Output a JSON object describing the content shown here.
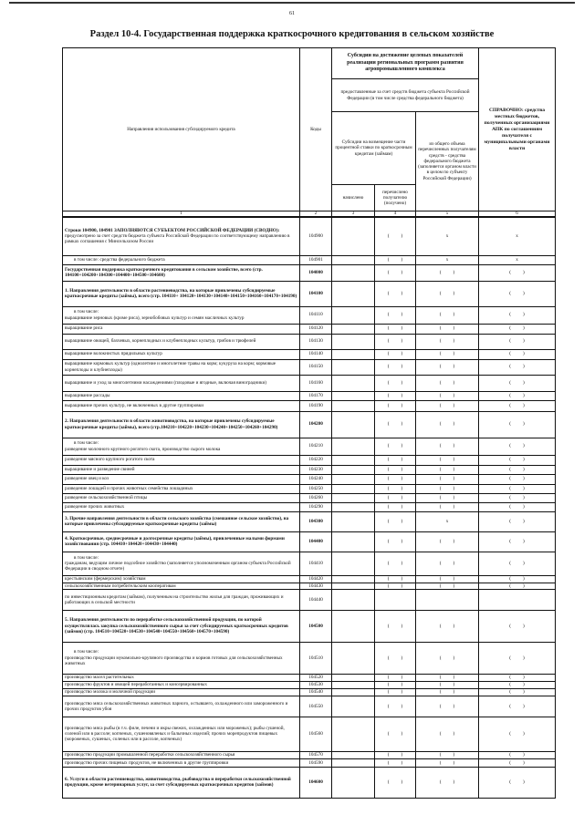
{
  "page_number": "61",
  "title": "Раздел 10-4. Государственная поддержка краткосрочного кредитования в сельском хозяйстве",
  "header": {
    "col_direction": "Направления использования субсидируемого кредита",
    "col_codes": "Коды",
    "group_subsidies": "Субсидии на достижение целевых показателей реализации региональных программ развития агропромышленного комплекса",
    "group_provided": "предоставленные за счет средств бюджета субъекта Российской Федерации (в том числе средства федерального бюджета)",
    "col_interest": "Субсидии на возмещение части процентной ставки по краткосрочным кредитам (займам)",
    "col_accrued": "начислено",
    "col_transferred": "перечислено получателю (получено)",
    "col_federal": "из общего объема перечисленных получателям средств - средства федерального бюджета (заполняется органом власти в целом по субъекту Российской Федерации)",
    "col_reference_bold": "СПРАВОЧНО:",
    "col_reference": "средства местных бюджетов, полученных организациями АПК по соглашениям получателя с муниципальными органами власти",
    "col_numbers": [
      "1",
      "2",
      "3",
      "4",
      "5",
      "6"
    ]
  },
  "rows": [
    {
      "code": "104900",
      "bold_text": "Строки 104900, 104901 ЗАПОЛНЯЮТСЯ СУБЪЕКТОМ РОССИЙСКОЙ ФЕДЕРАЦИИ (СВОДНО):",
      "text": "предусмотрено за счет средств бюджета субъекта Российской Федерации по соответствующему направлению в рамках соглашения с Минсельхозом России",
      "c3": "",
      "c4": "(          )",
      "c5": "x",
      "c6": "x"
    },
    {
      "code": "104901",
      "text": "в том числе: средства федерального бюджета",
      "indent": true,
      "c3": "",
      "c4": "(          )",
      "c5": "x",
      "c6": "x"
    },
    {
      "code": "104000",
      "bold": true,
      "text": "Государственная поддержка краткосрочного кредитования в сельском хозяйстве, всего (стр. 104100+104200+104300+104400+104500+104600)",
      "c3": "",
      "c4": "(          )",
      "c5": "(          )",
      "c6": "(          )"
    },
    {
      "code": "104100",
      "bold": true,
      "text": "1. Направления деятельности в области растениеводства, на которые привлечены субсидируемые краткосрочные кредиты (займы), всего (стр. 104110+ 104120+104130+104140+104150+104160+104170+104190)",
      "c3": "",
      "c4": "(          )",
      "c5": "(          )",
      "c6": "(          )"
    },
    {
      "code": "104110",
      "pre": "в том числе:",
      "text": "выращивание зерновых (кроме риса), зернобобовых культур и семян масличных культур",
      "c3": "",
      "c4": "(          )",
      "c5": "(          )",
      "c6": "(          )"
    },
    {
      "code": "104120",
      "text": "выращивание риса",
      "c3": "",
      "c4": "(          )",
      "c5": "(          )",
      "c6": "(          )"
    },
    {
      "code": "104130",
      "text": "выращивание овощей, бахчевых, корнеплодных и клубнеплодных культур, грибов и трюфелей",
      "c3": "",
      "c4": "(          )",
      "c5": "(          )",
      "c6": "(          )"
    },
    {
      "code": "104140",
      "text": "выращивание волокнистых прядильных культур",
      "c3": "",
      "c4": "(          )",
      "c5": "(          )",
      "c6": "(          )"
    },
    {
      "code": "104150",
      "text": "выращивание кормовых культур (однолетние и многолетние травы на корм; кукуруза на корм; кормовые корнеплоды и клубнеплоды)",
      "c3": "",
      "c4": "(          )",
      "c5": "(          )",
      "c6": "(          )"
    },
    {
      "code": "104160",
      "text": "выращивание и уход за многолетними насаждениями (плодовые и ягодные, включая виноградники)",
      "c3": "",
      "c4": "(          )",
      "c5": "(          )",
      "c6": "(          )"
    },
    {
      "code": "104170",
      "text": "выращивание рассады",
      "c3": "",
      "c4": "(          )",
      "c5": "(          )",
      "c6": "(          )"
    },
    {
      "code": "104190",
      "text": "выращивание прочих культур, не включенных в другие группировки",
      "c3": "",
      "c4": "(          )",
      "c5": "(          )",
      "c6": "(          )"
    },
    {
      "code": "104200",
      "bold": true,
      "text": "2. Направления деятельности в области животноводства, на которые привлечены субсидируемые краткосрочные кредиты (займы), всего (стр.104210+104220+104230+104240+104250+104260+104290)",
      "c3": "",
      "c4": "(          )",
      "c5": "(          )",
      "c6": "(          )"
    },
    {
      "code": "104210",
      "pre": "в том числе:",
      "text": "разведение молочного крупного рогатого скота, производство сырого молока",
      "c3": "",
      "c4": "(          )",
      "c5": "(          )",
      "c6": "(          )"
    },
    {
      "code": "104220",
      "text": "разведение мясного крупного рогатого скота",
      "c3": "",
      "c4": "(          )",
      "c5": "(          )",
      "c6": "(          )"
    },
    {
      "code": "104230",
      "text": "выращивание и разведение свиней",
      "c3": "",
      "c4": "(          )",
      "c5": "(          )",
      "c6": "(          )"
    },
    {
      "code": "104240",
      "text": "разведение овец и коз",
      "c3": "",
      "c4": "(          )",
      "c5": "(          )",
      "c6": "(          )"
    },
    {
      "code": "104250",
      "text": "разведение лошадей и прочих животных семейства лошадиных",
      "c3": "",
      "c4": "(          )",
      "c5": "(          )",
      "c6": "(          )"
    },
    {
      "code": "104260",
      "text": "разведение сельскохозяйственной птицы",
      "c3": "",
      "c4": "(          )",
      "c5": "(          )",
      "c6": "(          )"
    },
    {
      "code": "104290",
      "text": "разведение прочих животных",
      "c3": "",
      "c4": "(          )",
      "c5": "(          )",
      "c6": "(          )"
    },
    {
      "code": "104300",
      "bold": true,
      "text": "3. Прочие направления деятельности в области сельского хозяйства (смешанное сельское хозяйство), на которые привлечены субсидируемые краткосрочные кредиты (займы)",
      "c3": "",
      "c4": "(          )",
      "c5": "x",
      "c6": "(          )"
    },
    {
      "code": "104400",
      "bold": true,
      "text": "4. Краткосрочные, среднесрочные и долгосрочные кредиты (займы), привлеченные малыми формами хозяйствования (стр. 104410+104420+104430+104440)",
      "c3": "",
      "c4": "(          )",
      "c5": "(          )",
      "c6": "(          )"
    },
    {
      "code": "104410",
      "pre": "в том числе:",
      "text": "гражданам, ведущим личное подсобное хозяйство (заполняется уполномоченным органом субъекта Российской Федерации в сводном отчете)",
      "c3": "",
      "c4": "(          )",
      "c5": "(          )",
      "c6": "(          )"
    },
    {
      "code": "104420",
      "text": "крестьянским (фермерским) хозяйствам",
      "c3": "",
      "c4": "(          )",
      "c5": "(          )",
      "c6": "(          )"
    },
    {
      "code": "104430",
      "text": "сельскохозяйственным потребительским кооперативам",
      "c3": "",
      "c4": "(          )",
      "c5": "(          )",
      "c6": "(          )"
    },
    {
      "code": "104440",
      "text": "по инвестиционным кредитам (займам), полученным на строительство жилья для граждан, проживающих и работающих в сельской местности",
      "c3": "",
      "c4": "",
      "c5": "",
      "c6": ""
    },
    {
      "code": "104500",
      "bold": true,
      "text": "5. Направления деятельности по переработке сельскохозяйственной продукции, по которой осуществлялась закупка сельскохозяйственного сырья за счет субсидируемых краткосрочных кредитов (займов) (стр. 104510+104520+104530+104540+104550+104560+104570+104590)",
      "c3": "",
      "c4": "(          )",
      "c5": "(          )",
      "c6": "(          )"
    },
    {
      "code": "104510",
      "pre": "в том числе:",
      "text": "производство продукции мукомольно-крупяного производства и кормов готовых для сельскохозяйственных животных",
      "c3": "",
      "c4": "(          )",
      "c5": "(          )",
      "c6": "(          )"
    },
    {
      "code": "104520",
      "text": "производство масел растительных",
      "c3": "",
      "c4": "(          )",
      "c5": "(          )",
      "c6": "(          )"
    },
    {
      "code": "104530",
      "text": "производство фруктов и овощей переработанных и консервированных",
      "c3": "",
      "c4": "(          )",
      "c5": "(          )",
      "c6": "(          )"
    },
    {
      "code": "104540",
      "text": "производство молока и молочной продукции",
      "c3": "",
      "c4": "(          )",
      "c5": "(          )",
      "c6": "(          )"
    },
    {
      "code": "104550",
      "text": "производство мяса сельскохозяйственных животных парного, остывшего, охлажденного или замороженного и прочих продуктов убоя",
      "c3": "",
      "c4": "(          )",
      "c5": "(          )",
      "c6": "(          )"
    },
    {
      "code": "104560",
      "text": "производство мяса рыбы (в т.ч. филе, печени и икры свежих, охлажденных или мороженых); рыбы сушеной, соленой или в рассоле; копченых, сушеновяленых и балычных изделий; прочих морепродуктов пищевых (мороженых, сушеных, соленых или в рассоле, копченых)",
      "c3": "",
      "c4": "(          )",
      "c5": "(          )",
      "c6": "(          )"
    },
    {
      "code": "104570",
      "text": "производство продукции промышленной переработки сельскохозяйственного сырья",
      "c3": "",
      "c4": "(          )",
      "c5": "(          )",
      "c6": "(          )"
    },
    {
      "code": "104590",
      "text": "производство прочих пищевых продуктов, не включенных в другие группировки",
      "c3": "",
      "c4": "(          )",
      "c5": "(          )",
      "c6": "(          )"
    },
    {
      "code": "104600",
      "bold": true,
      "text": "6. Услуги в области растениеводства, животноводства, рыбоводства и переработки сельскохозяйственной продукции, кроме ветеринарных услуг, за счет субсидируемых краткосрочных кредитов (займов)",
      "c3": "",
      "c4": "(          )",
      "c5": "(          )",
      "c6": "(          )"
    }
  ]
}
